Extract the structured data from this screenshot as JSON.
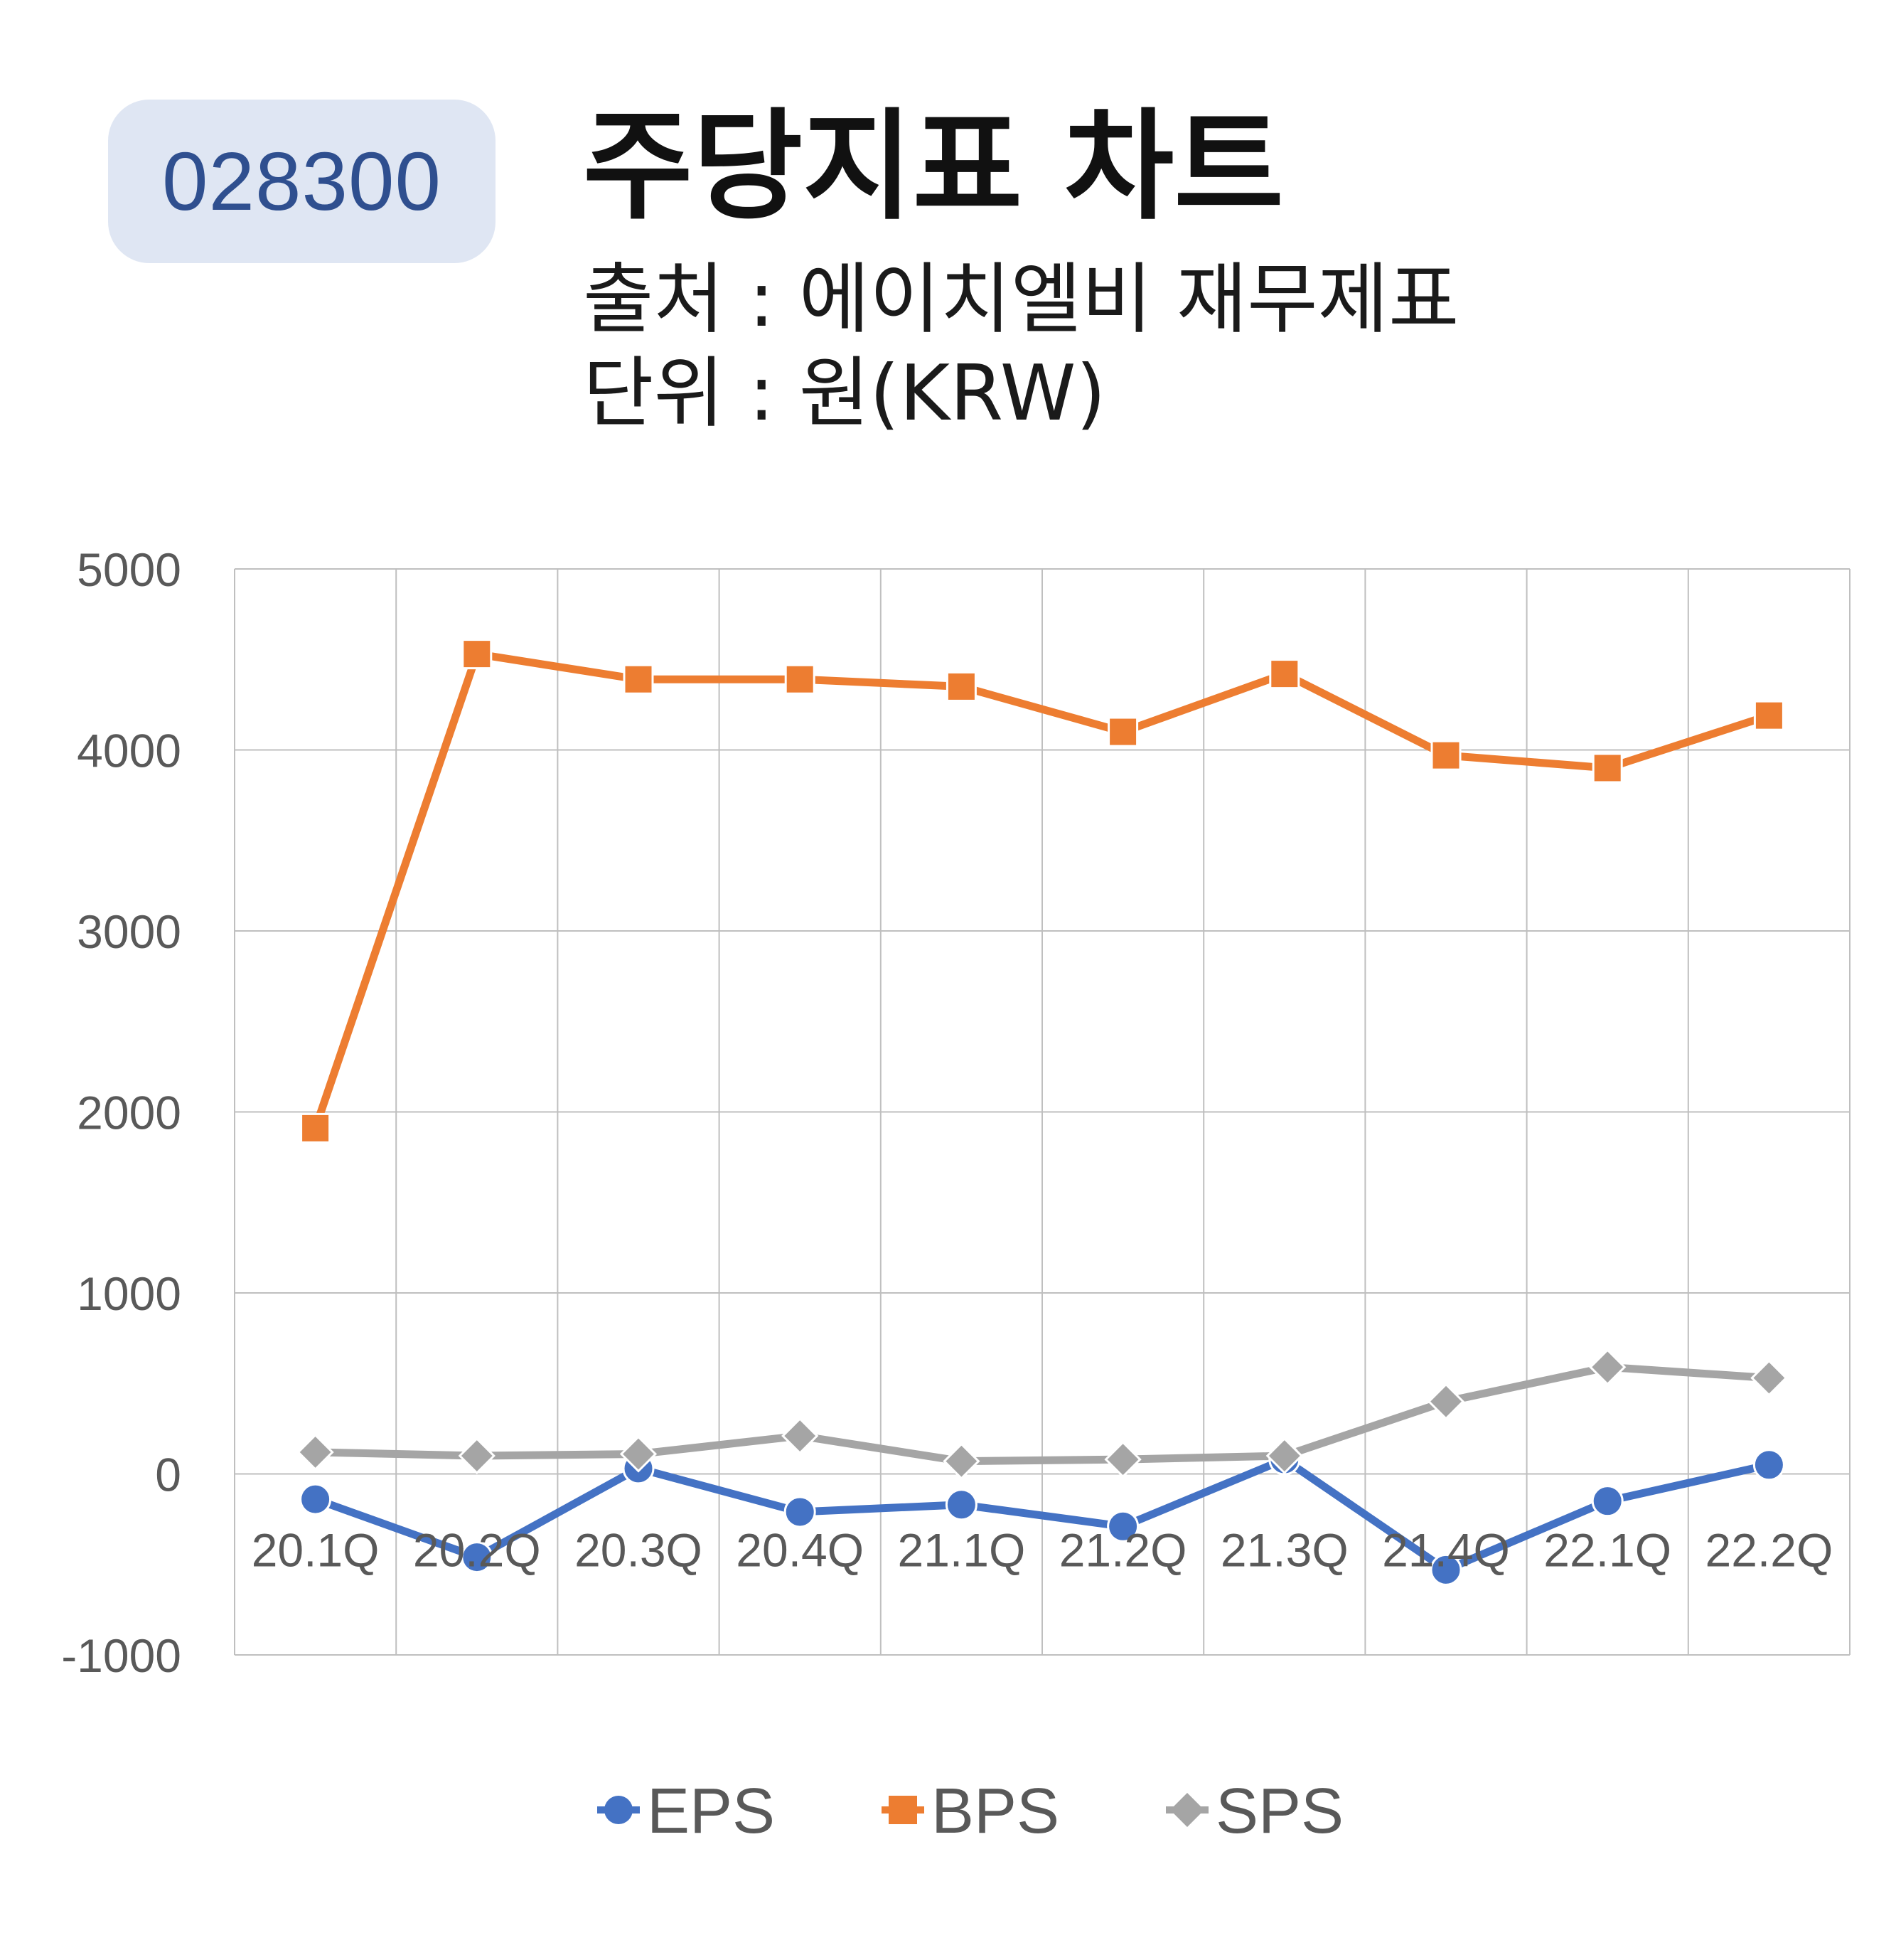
{
  "badge": {
    "code": "028300"
  },
  "header": {
    "title": "주당지표 차트",
    "source": "출처 : 에이치엘비 재무제표",
    "unit": "단위 : 원(KRW)"
  },
  "colors": {
    "EPS": "#4472c4",
    "BPS": "#ed7d31",
    "SPS": "#a5a5a5",
    "grid": "#bfbfbf",
    "axis_text": "#595959"
  },
  "chart_data": {
    "type": "line",
    "title": "주당지표 차트",
    "categories": [
      "20.1Q",
      "20.2Q",
      "20.3Q",
      "20.4Q",
      "21.1Q",
      "21.2Q",
      "21.3Q",
      "21.4Q",
      "22.1Q",
      "22.2Q"
    ],
    "series": [
      {
        "name": "EPS",
        "marker": "circle",
        "values": [
          -140,
          -460,
          30,
          -210,
          -170,
          -290,
          80,
          -530,
          -150,
          50
        ]
      },
      {
        "name": "BPS",
        "marker": "square",
        "values": [
          1910,
          4530,
          4390,
          4390,
          4350,
          4100,
          4420,
          3970,
          3900,
          4190
        ]
      },
      {
        "name": "SPS",
        "marker": "diamond",
        "values": [
          120,
          100,
          110,
          210,
          70,
          80,
          100,
          400,
          590,
          530
        ]
      }
    ],
    "ylim": [
      -1000,
      5000
    ],
    "yticks": [
      "-1000",
      "0",
      "1000",
      "2000",
      "3000",
      "4000",
      "5000"
    ],
    "grid": true,
    "legend": "bottom"
  }
}
